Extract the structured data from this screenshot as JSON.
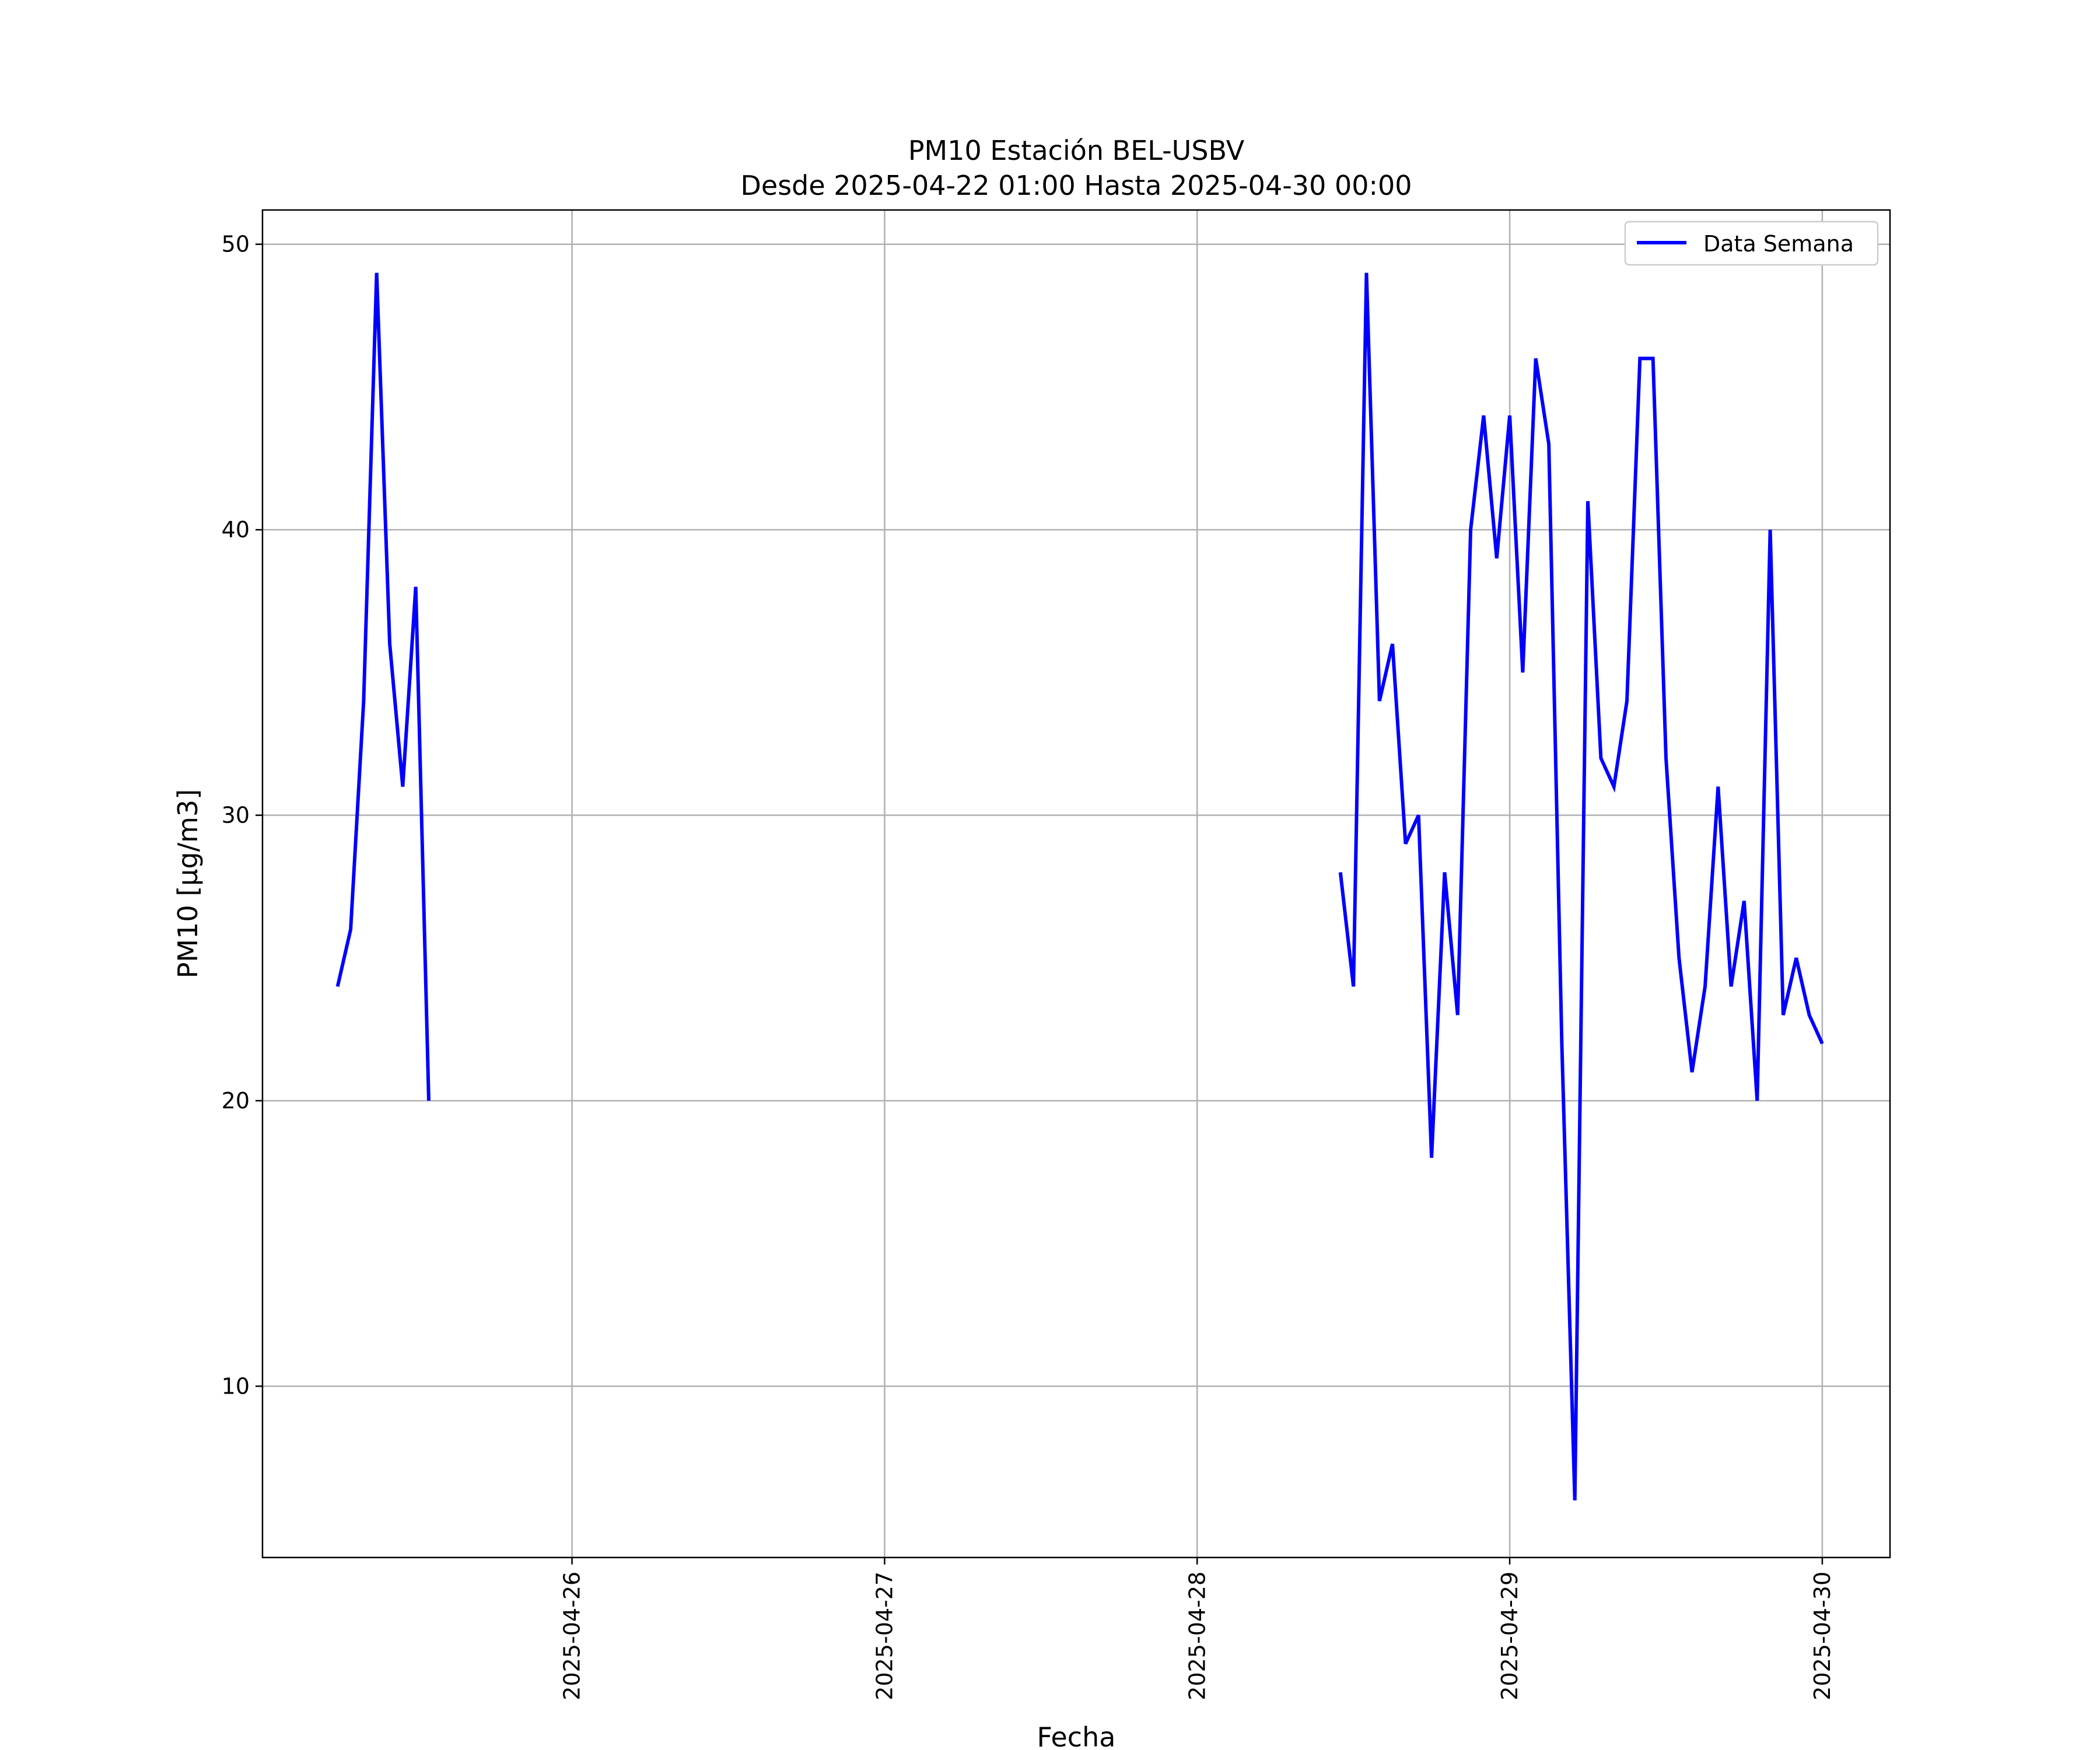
{
  "chart_data": {
    "type": "line",
    "title": "PM10 Estación BEL-USBV",
    "subtitle": "Desde 2025-04-22 01:00 Hasta 2025-04-30 00:00",
    "xlabel": "Fecha",
    "ylabel": "PM10 [μg/m3]",
    "xlim": [
      "2025-04-25 00:14",
      "2025-04-30 05:12"
    ],
    "ylim": [
      4,
      51.2
    ],
    "x_ticks": [
      "2025-04-26",
      "2025-04-27",
      "2025-04-28",
      "2025-04-29",
      "2025-04-30"
    ],
    "y_ticks": [
      10,
      20,
      30,
      40,
      50
    ],
    "grid": true,
    "legend_position": "top-right",
    "series": [
      {
        "name": "Data Semana",
        "color": "#0000ff",
        "segments": [
          {
            "x": [
              "2025-04-25 06:00",
              "2025-04-25 07:00",
              "2025-04-25 08:00",
              "2025-04-25 09:00",
              "2025-04-25 10:00",
              "2025-04-25 11:00",
              "2025-04-25 12:00",
              "2025-04-25 13:00"
            ],
            "y": [
              24,
              26,
              34,
              49,
              36,
              31,
              38,
              20
            ]
          },
          {
            "x": [
              "2025-04-28 11:00",
              "2025-04-28 12:00",
              "2025-04-28 13:00",
              "2025-04-28 14:00",
              "2025-04-28 15:00",
              "2025-04-28 16:00",
              "2025-04-28 17:00",
              "2025-04-28 18:00",
              "2025-04-28 19:00",
              "2025-04-28 20:00",
              "2025-04-28 21:00",
              "2025-04-28 22:00",
              "2025-04-28 23:00",
              "2025-04-29 00:00",
              "2025-04-29 01:00",
              "2025-04-29 02:00",
              "2025-04-29 03:00",
              "2025-04-29 04:00",
              "2025-04-29 05:00",
              "2025-04-29 06:00",
              "2025-04-29 07:00",
              "2025-04-29 08:00",
              "2025-04-29 09:00",
              "2025-04-29 10:00",
              "2025-04-29 11:00",
              "2025-04-29 12:00",
              "2025-04-29 13:00",
              "2025-04-29 14:00",
              "2025-04-29 15:00",
              "2025-04-29 16:00",
              "2025-04-29 17:00",
              "2025-04-29 18:00",
              "2025-04-29 19:00",
              "2025-04-29 20:00",
              "2025-04-29 21:00",
              "2025-04-29 22:00",
              "2025-04-29 23:00",
              "2025-04-30 00:00"
            ],
            "y": [
              28,
              24,
              49,
              34,
              36,
              29,
              30,
              18,
              28,
              23,
              40,
              44,
              39,
              44,
              35,
              46,
              43,
              22,
              6,
              41,
              32,
              31,
              34,
              46,
              46,
              32,
              25,
              21,
              24,
              31,
              24,
              27,
              20,
              40,
              23,
              25,
              23,
              22
            ]
          }
        ]
      }
    ]
  }
}
